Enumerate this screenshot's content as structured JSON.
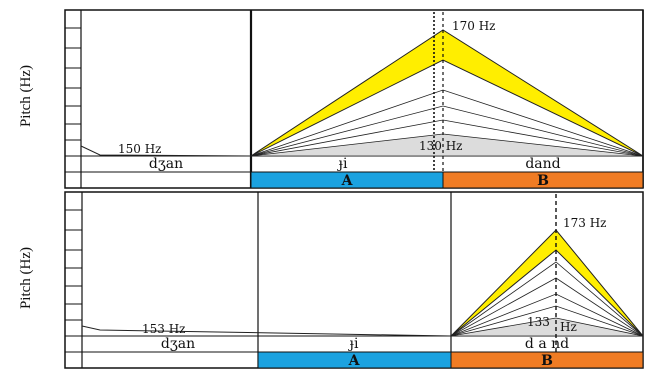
{
  "colors": {
    "contour_fill": "#ffee00",
    "contour_stroke": "#222222",
    "floor_fill": "#dcdcdc",
    "segment_a": "#1ba2e0",
    "segment_b": "#f07c24",
    "frame": "#111111"
  },
  "chart_data": [
    {
      "type": "line",
      "ylabel": "Pitch (Hz)",
      "syllables": [
        "dʒan",
        "ɟi",
        "dand"
      ],
      "segments": [
        {
          "label": "A",
          "color": "#1ba2e0"
        },
        {
          "label": "B",
          "color": "#f07c24"
        }
      ],
      "labels": {
        "start": "150 Hz",
        "peak_high": "170 Hz",
        "peak_low": "130 Hz"
      },
      "values": {
        "start": 150,
        "peak_high": 170,
        "peak_low": 130
      },
      "ylim": [
        125,
        175
      ],
      "peak_position": "boundary between A and B"
    },
    {
      "type": "line",
      "ylabel": "Pitch (Hz)",
      "syllables": [
        "dʒan",
        "ɟi",
        "d a nd"
      ],
      "segments": [
        {
          "label": "A",
          "color": "#1ba2e0"
        },
        {
          "label": "B",
          "color": "#f07c24"
        }
      ],
      "labels": {
        "start": "153 Hz",
        "peak_high": "173 Hz",
        "peak_low_sup": "133",
        "peak_low_unit": "Hz"
      },
      "values": {
        "start": 153,
        "peak_high": 173,
        "peak_low": 133
      },
      "ylim": [
        125,
        178
      ],
      "peak_position": "inside segment B"
    }
  ]
}
